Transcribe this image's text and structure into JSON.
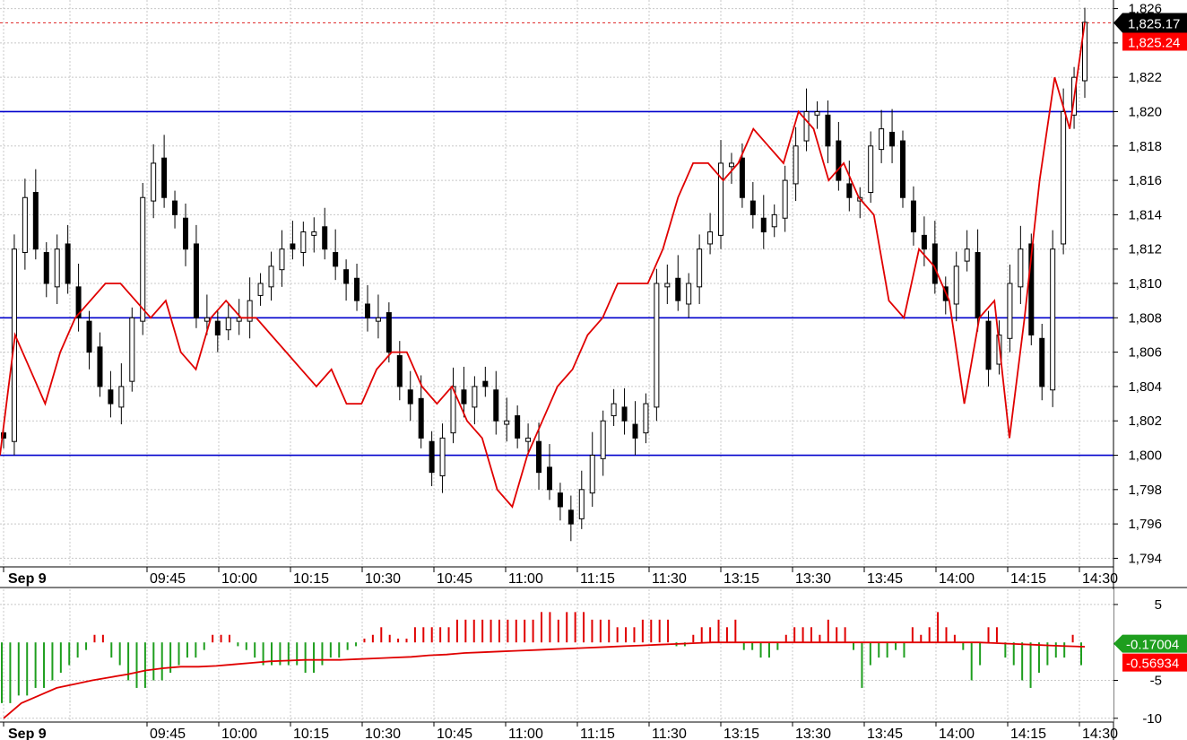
{
  "chart_data": [
    {
      "type": "candlestick",
      "title": "",
      "ylim": [
        1793.5,
        1826.5
      ],
      "y_ticks": [
        "1,794",
        "1,796",
        "1,798",
        "1,800",
        "1,802",
        "1,804",
        "1,806",
        "1,808",
        "1,810",
        "1,812",
        "1,814",
        "1,816",
        "1,818",
        "1,820",
        "1,822",
        "1,824",
        "1,826"
      ],
      "x_tick_labels": [
        "Sep 9",
        "09:45",
        "10:00",
        "10:15",
        "10:30",
        "10:45",
        "11:00",
        "11:15",
        "11:30",
        "13:15",
        "13:30",
        "13:45",
        "14:00",
        "14:15",
        "14:30"
      ],
      "horizontal_lines": [
        1820,
        1808,
        1800
      ],
      "last_price_line": 1825.17,
      "badges": [
        {
          "label": "1,825.17",
          "color": "#000000"
        },
        {
          "label": "1,825.24",
          "color": "#ff0000"
        }
      ],
      "close_series": [
        1801,
        1812,
        1815,
        1812,
        1810,
        1812,
        1810,
        1808,
        1806,
        1804,
        1803,
        1804,
        1808,
        1815,
        1817,
        1815,
        1814,
        1812,
        1808,
        1808,
        1807,
        1808,
        1808,
        1809,
        1810,
        1811,
        1812,
        1812,
        1813,
        1813,
        1812,
        1811,
        1810,
        1809,
        1808,
        1808,
        1806,
        1804,
        1803,
        1801,
        1799,
        1801,
        1804,
        1803,
        1804,
        1804,
        1802,
        1802,
        1801,
        1801,
        1799,
        1798,
        1797,
        1796,
        1798,
        1800,
        1802,
        1803,
        1802,
        1801,
        1803,
        1810,
        1810,
        1809,
        1810,
        1812,
        1813,
        1817,
        1817,
        1815,
        1814,
        1813,
        1814,
        1816,
        1818,
        1820,
        1820,
        1818,
        1816,
        1815,
        1815,
        1818,
        1819,
        1818,
        1815,
        1813,
        1812,
        1810,
        1809,
        1811,
        1812,
        1808,
        1805,
        1807,
        1810,
        1812,
        1807,
        1804,
        1812,
        1820,
        1822,
        1825.2
      ],
      "ma_series": [
        1800,
        1807,
        1805,
        1803,
        1806,
        1808,
        1809,
        1810,
        1810,
        1809,
        1808,
        1809,
        1806,
        1805,
        1808,
        1809,
        1808,
        1808,
        1807,
        1806,
        1805,
        1804,
        1805,
        1803,
        1803,
        1805,
        1806,
        1806,
        1804,
        1803,
        1804,
        1802,
        1801,
        1798,
        1797,
        1800,
        1802,
        1804,
        1805,
        1807,
        1808,
        1810,
        1810,
        1810,
        1812,
        1815,
        1817,
        1817,
        1816,
        1817,
        1819,
        1818,
        1817,
        1820,
        1819,
        1816,
        1817,
        1815,
        1814,
        1809,
        1808,
        1812,
        1811,
        1809,
        1803,
        1808,
        1809,
        1801,
        1808,
        1816,
        1822,
        1819,
        1825.2
      ]
    },
    {
      "type": "histogram",
      "ylim": [
        -10.5,
        7
      ],
      "y_ticks": [
        "5",
        "-5",
        "-10"
      ],
      "badges": [
        {
          "label": "-0.17004",
          "color": "#1e9e1e"
        },
        {
          "label": "-0.56934",
          "color": "#ff0000"
        }
      ],
      "bar_values": [
        -8,
        -8,
        -7,
        -7,
        -6,
        -6,
        -5,
        -4,
        -3,
        -2,
        -1,
        1,
        1,
        -2,
        -3,
        -5,
        -6,
        -6,
        -5,
        -5,
        -4,
        -3,
        -2,
        -2,
        -1,
        1,
        1,
        1,
        -0.5,
        -1,
        -2,
        -3,
        -3,
        -3,
        -3,
        -3,
        -4,
        -4,
        -3,
        -2,
        -2,
        -1,
        -0.5,
        0.5,
        1,
        2,
        1,
        0.5,
        0.5,
        2,
        2,
        2,
        2,
        2,
        3,
        3,
        3,
        3,
        3,
        3,
        3,
        3,
        3,
        3,
        4,
        4,
        3,
        4,
        4,
        4,
        3,
        3,
        3,
        2,
        2,
        2,
        3,
        3,
        3,
        3,
        -0.5,
        -0.5,
        1,
        2,
        2,
        3,
        2,
        3,
        -1,
        -1,
        -2,
        -2,
        -1,
        1,
        2,
        2,
        2,
        1,
        3,
        2,
        2,
        -1,
        -6,
        -3,
        -2,
        -2,
        -1,
        -2,
        2,
        1,
        2,
        4,
        2,
        1,
        -1,
        -5,
        -3,
        2,
        2,
        -2,
        -3,
        -5,
        -6,
        -4,
        -3,
        -2,
        -2,
        1,
        -3
      ],
      "signal_series": [
        -10,
        -8,
        -7,
        -6,
        -5.5,
        -5,
        -4.6,
        -4.2,
        -3.7,
        -3.4,
        -3.2,
        -3.2,
        -3.1,
        -2.9,
        -2.7,
        -2.5,
        -2.4,
        -2.3,
        -2.3,
        -2.3,
        -2.2,
        -2.1,
        -2.0,
        -1.9,
        -1.7,
        -1.6,
        -1.4,
        -1.3,
        -1.2,
        -1.1,
        -1.0,
        -0.9,
        -0.8,
        -0.7,
        -0.6,
        -0.5,
        -0.4,
        -0.3,
        -0.2,
        -0.1,
        0,
        0,
        0,
        0,
        0,
        0,
        0,
        0,
        0,
        0,
        0,
        0,
        0,
        0,
        0,
        0,
        -0.1,
        -0.2,
        -0.3,
        -0.4,
        -0.5,
        -0.57
      ]
    }
  ]
}
